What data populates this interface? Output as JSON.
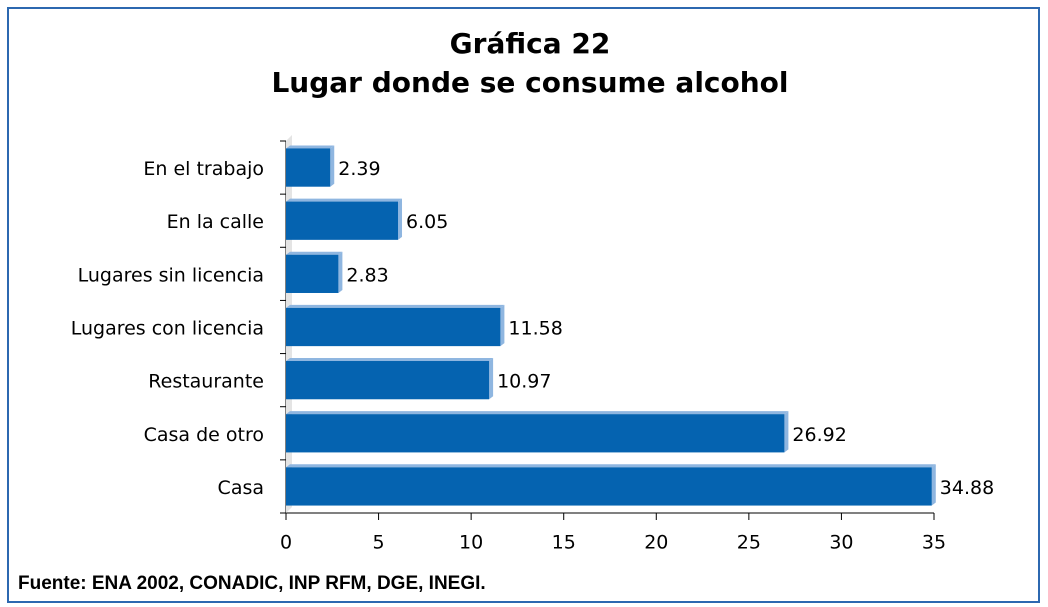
{
  "chart_data": {
    "type": "hbar",
    "title": "Gráfica 22",
    "subtitle": "Lugar donde se consume alcohol",
    "categories": [
      "En el trabajo",
      "En la calle",
      "Lugares sin licencia",
      "Lugares con licencia",
      "Restaurante",
      "Casa de otro",
      "Casa"
    ],
    "values": [
      2.39,
      6.05,
      2.83,
      11.58,
      10.97,
      26.92,
      34.88
    ],
    "color": "#0563b0",
    "xlim": [
      0,
      35
    ],
    "xticks": [
      0,
      5,
      10,
      15,
      20,
      25,
      30,
      35
    ],
    "grid": false,
    "source": "Fuente: ENA 2002, CONADIC, INP RFM, DGE, INEGI."
  }
}
